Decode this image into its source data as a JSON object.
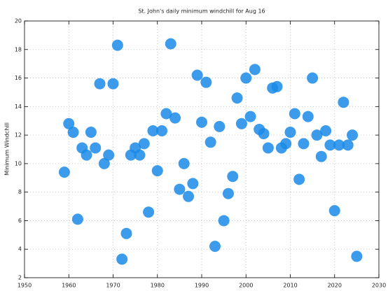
{
  "chart_data": {
    "type": "scatter",
    "title": "St. John's daily minimum windchill for Aug 16",
    "y_label": "Minimum Windchill",
    "color": "#1a8ae6",
    "grid": true,
    "xlim": [
      1950,
      2030
    ],
    "xticks": [
      1950,
      1960,
      1970,
      1980,
      1990,
      2000,
      2010,
      2020,
      2030
    ],
    "ylim": [
      2,
      20
    ],
    "yticks": [
      2,
      4,
      6,
      8,
      10,
      12,
      14,
      16,
      18,
      20
    ],
    "x": [
      1959,
      1960,
      1961,
      1962,
      1963,
      1964,
      1965,
      1966,
      1967,
      1968,
      1969,
      1970,
      1971,
      1972,
      1973,
      1974,
      1975,
      1976,
      1977,
      1978,
      1979,
      1980,
      1981,
      1982,
      1983,
      1984,
      1985,
      1986,
      1987,
      1988,
      1989,
      1990,
      1991,
      1992,
      1993,
      1994,
      1995,
      1996,
      1997,
      1998,
      1999,
      2000,
      2001,
      2002,
      2003,
      2004,
      2005,
      2006,
      2007,
      2008,
      2009,
      2010,
      2011,
      2012,
      2013,
      2014,
      2015,
      2016,
      2017,
      2018,
      2019,
      2020,
      2021,
      2022,
      2023,
      2024,
      2025
    ],
    "values": [
      9.4,
      12.8,
      12.2,
      6.1,
      11.1,
      10.6,
      12.2,
      11.1,
      15.6,
      10.0,
      10.6,
      15.6,
      18.3,
      3.3,
      5.1,
      10.6,
      11.1,
      10.6,
      11.4,
      6.6,
      12.3,
      9.5,
      12.3,
      13.5,
      18.4,
      13.2,
      8.2,
      10.0,
      7.7,
      8.6,
      16.2,
      12.9,
      15.7,
      11.5,
      4.2,
      12.6,
      6.0,
      7.9,
      9.1,
      14.6,
      12.8,
      16.0,
      13.3,
      16.6,
      12.4,
      12.1,
      11.1,
      15.3,
      15.4,
      11.1,
      11.4,
      12.2,
      13.5,
      8.9,
      11.4,
      13.3,
      16.0,
      12.0,
      10.5,
      12.3,
      11.3,
      6.7,
      11.3,
      14.3,
      11.3,
      12.0,
      3.5
    ]
  }
}
